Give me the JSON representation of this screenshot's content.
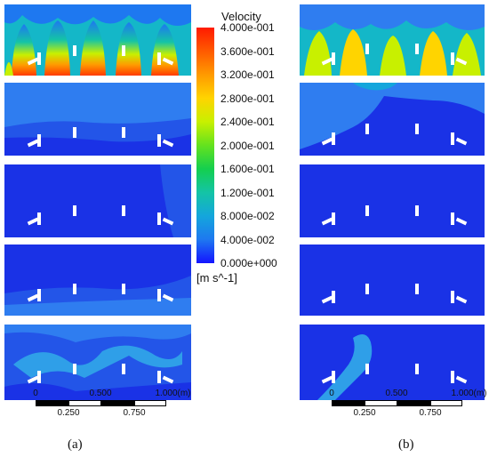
{
  "legend": {
    "title": "Velocity",
    "ticks": [
      "4.000e-001",
      "3.600e-001",
      "3.200e-001",
      "2.800e-001",
      "2.400e-001",
      "2.000e-001",
      "1.600e-001",
      "1.200e-001",
      "8.000e-002",
      "4.000e-002",
      "0.000e+000"
    ],
    "units": "[m s^-1]",
    "colormap": [
      "#ff1a00",
      "#ff9a00",
      "#ffd400",
      "#64e21e",
      "#14c4a6",
      "#1e78f0",
      "#1414ff"
    ]
  },
  "scale_bar": {
    "top_labels": [
      "0",
      "0.500",
      "1.000",
      "(m)"
    ],
    "bottom_labels": [
      "0.250",
      "0.750"
    ]
  },
  "figure_labels": {
    "a": "(a)",
    "b": "(b)"
  },
  "colors": {
    "background_flow": "#1a32e6",
    "mid_flow": "#2f7df0",
    "inlet": "#ffffff"
  }
}
